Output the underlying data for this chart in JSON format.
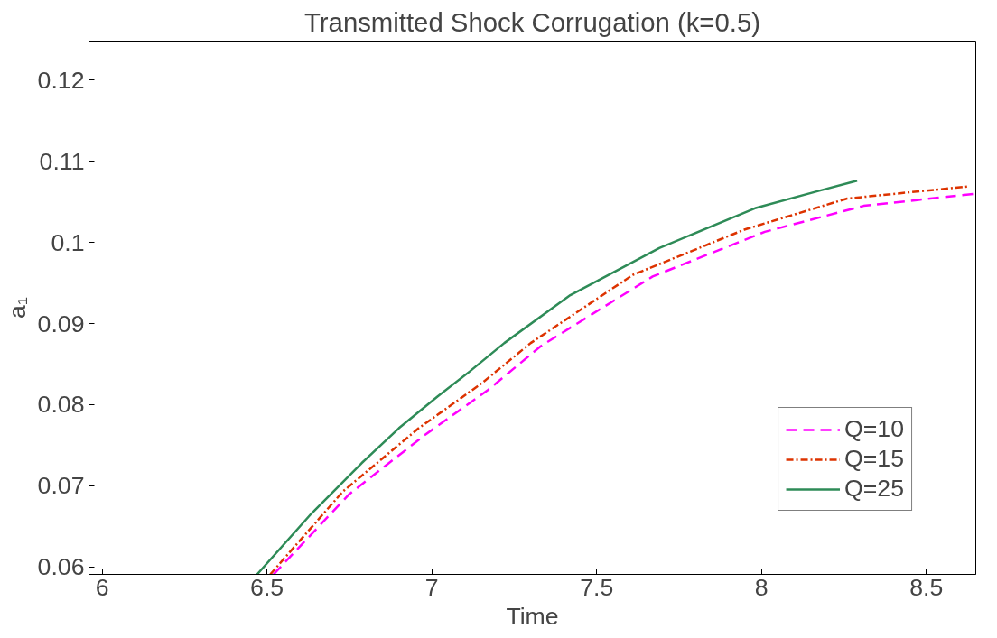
{
  "chart_data": {
    "type": "line",
    "title": "Transmitted Shock Corrugation (k=0.5)",
    "xlabel": "Time",
    "ylabel": "a₁",
    "xlim": [
      5.96,
      8.65
    ],
    "xticks": [
      6,
      6.5,
      7,
      7.5,
      8,
      8.5
    ],
    "ylim": [
      0.0591,
      0.1248
    ],
    "yticks": [
      0.06,
      0.07,
      0.08,
      0.09,
      0.1,
      0.11,
      0.12
    ],
    "grid": false,
    "legend": "bottom right",
    "marker": "none",
    "series": [
      {
        "name": "Q=10",
        "color": "#ff00ff",
        "line_style": "dashed",
        "x": [
          6.52,
          6.75,
          6.98,
          7.17,
          7.33,
          7.67,
          8.01,
          8.31,
          8.65
        ],
        "values": [
          0.0591,
          0.069,
          0.0763,
          0.0818,
          0.0872,
          0.0958,
          0.1013,
          0.1045,
          0.106
        ]
      },
      {
        "name": "Q=15",
        "color": "#dd3300",
        "line_style": "dashdot",
        "x": [
          6.51,
          6.73,
          6.96,
          7.15,
          7.3,
          7.61,
          7.95,
          8.26,
          8.63
        ],
        "values": [
          0.0591,
          0.0693,
          0.0771,
          0.0826,
          0.0876,
          0.096,
          0.1016,
          0.1054,
          0.1069
        ]
      },
      {
        "name": "Q=25",
        "color": "#2e8b57",
        "line_style": "solid",
        "x": [
          6.47,
          6.635,
          6.787,
          6.9,
          7.017,
          7.115,
          7.22,
          7.42,
          7.69,
          7.98,
          8.17,
          8.29
        ],
        "values": [
          0.0591,
          0.0666,
          0.0728,
          0.0771,
          0.081,
          0.0841,
          0.0876,
          0.0935,
          0.0993,
          0.1042,
          0.1063,
          0.1076
        ]
      }
    ]
  }
}
